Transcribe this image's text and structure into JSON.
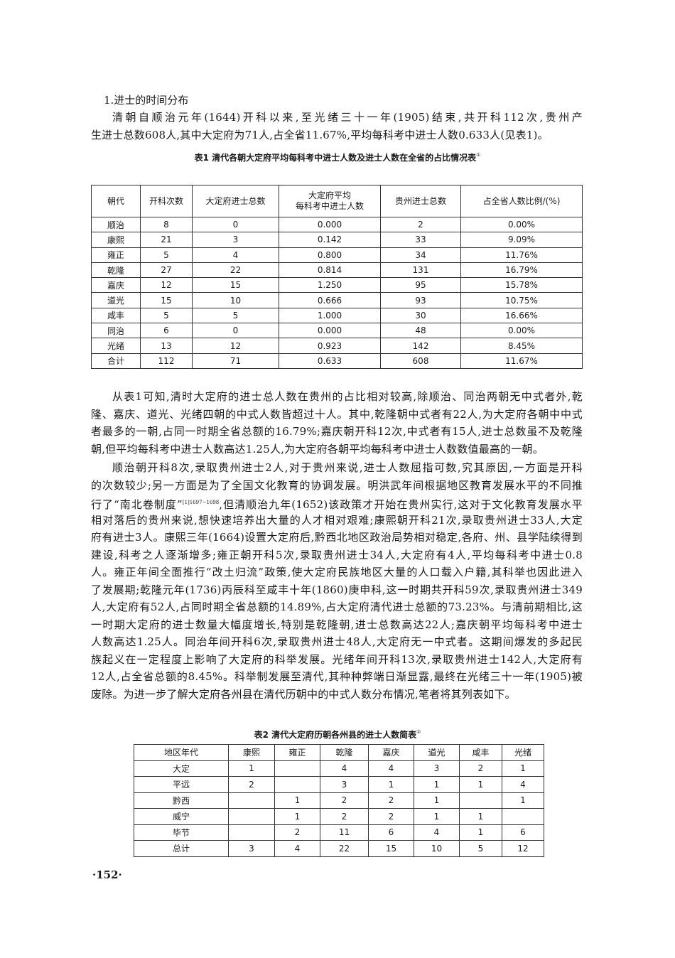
{
  "section_heading": "1.进士的时间分布",
  "paragraph1": [
    "清朝自顺治元年(1644)开科以来,至光绪三十一年(1905)结束,共开科112次,贵州产",
    "生进士总数608人,其中大定府为71人,占全省11.67%,平均每科考中进士人数0.633人(见表1)。"
  ],
  "table1": {
    "caption": "表1  清代各朝大定府平均每科考中进士人数及进士人数在全省的占比情况表",
    "caption_note": "①",
    "headers": [
      "朝代",
      "开科次数",
      "大定府进士总数",
      "大定府平均\n每科考中进士人数",
      "贵州进士总数",
      "占全省人数比例/(%)"
    ],
    "rows": [
      [
        "顺治",
        "8",
        "0",
        "0.000",
        "2",
        "0.00%"
      ],
      [
        "康熙",
        "21",
        "3",
        "0.142",
        "33",
        "9.09%"
      ],
      [
        "雍正",
        "5",
        "4",
        "0.800",
        "34",
        "11.76%"
      ],
      [
        "乾隆",
        "27",
        "22",
        "0.814",
        "131",
        "16.79%"
      ],
      [
        "嘉庆",
        "12",
        "15",
        "1.250",
        "95",
        "15.78%"
      ],
      [
        "道光",
        "15",
        "10",
        "0.666",
        "93",
        "10.75%"
      ],
      [
        "咸丰",
        "5",
        "5",
        "1.000",
        "30",
        "16.66%"
      ],
      [
        "同治",
        "6",
        "0",
        "0.000",
        "48",
        "0.00%"
      ],
      [
        "光绪",
        "13",
        "12",
        "0.923",
        "142",
        "8.45%"
      ],
      [
        "合计",
        "112",
        "71",
        "0.633",
        "608",
        "11.67%"
      ]
    ]
  },
  "paragraph2": [
    "从表1可知,清时大定府的进士总人数在贵州的占比相对较高,除顺治、同治两朝无中式者外,乾",
    "隆、嘉庆、道光、光绪四朝的中式人数皆超过十人。其中,乾隆朝中式者有22人,为大定府各朝中中式",
    "者最多的一朝,占同一时期全省总额的16.79%;嘉庆朝开科12次,中式者有15人,进士总数虽不及乾隆",
    "朝,但平均每科考中进士人数高达1.25人,为大定府各朝平均每科考中进士人数数值最高的一朝。"
  ],
  "paragraph3": {
    "line1": "顺治朝开科8次,录取贵州进士2人,对于贵州来说,进士人数屈指可数,究其原因,一方面是开科",
    "line2": "的次数较少;另一方面是为了全国文化教育的协调发展。明洪武年间根据地区教育发展水平的不同推",
    "line3_pre": "行了“南北卷制度”",
    "line3_sup": "[1]1697−1698",
    "line3_post": ",但清顺治九年(1652)该政策才开始在贵州实行,这对于文化教育发展水平",
    "rest": [
      "相对落后的贵州来说,想快速培养出大量的人才相对艰难;康熙朝开科21次,录取贵州进士33人,大定",
      "府有进士3人。康熙三年(1664)设置大定府后,黔西北地区政治局势相对稳定,各府、州、县学陆续得到",
      "建设,科考之人逐渐增多;雍正朝开科5次,录取贵州进士34人,大定府有4人,平均每科考中进士0.8",
      "人。雍正年间全面推行“改土归流”政策,使大定府民族地区大量的人口载入户籍,其科举也因此进入",
      "了发展期;乾隆元年(1736)丙辰科至咸丰十年(1860)庚申科,这一时期共开科59次,录取贵州进士349",
      "人,大定府有52人,占同时期全省总额的14.89%,占大定府清代进士总额的73.23%。与清前期相比,这",
      "一时期大定府的进士数量大幅度增长,特别是乾隆朝,进士总数高达22人;嘉庆朝平均每科考中进士",
      "人数高达1.25人。同治年间开科6次,录取贵州进士48人,大定府无一中式者。这期间爆发的多起民",
      "族起义在一定程度上影响了大定府的科举发展。光绪年间开科13次,录取贵州进士142人,大定府有",
      "12人,占全省总额的8.45%。科举制发展至清代,其种种弊端日渐显露,最终在光绪三十一年(1905)被",
      "废除。为进一步了解大定府各州县在清代历朝中的中式人数分布情况,笔者将其列表如下。"
    ]
  },
  "table2": {
    "caption": "表2  清代大定府历朝各州县的进士人数简表",
    "caption_note": "②",
    "headers": [
      "地区年代",
      "康熙",
      "雍正",
      "乾隆",
      "嘉庆",
      "道光",
      "咸丰",
      "光绪"
    ],
    "rows": [
      [
        "大定",
        "1",
        "",
        "4",
        "4",
        "3",
        "2",
        "1"
      ],
      [
        "平远",
        "2",
        "",
        "3",
        "1",
        "1",
        "1",
        "4"
      ],
      [
        "黔西",
        "",
        "1",
        "2",
        "2",
        "1",
        "",
        "1"
      ],
      [
        "威宁",
        "",
        "1",
        "2",
        "2",
        "1",
        "1",
        ""
      ],
      [
        "毕节",
        "",
        "2",
        "11",
        "6",
        "4",
        "1",
        "6"
      ],
      [
        "总计",
        "3",
        "4",
        "22",
        "15",
        "10",
        "5",
        "12"
      ]
    ]
  },
  "page_number": "·152·"
}
